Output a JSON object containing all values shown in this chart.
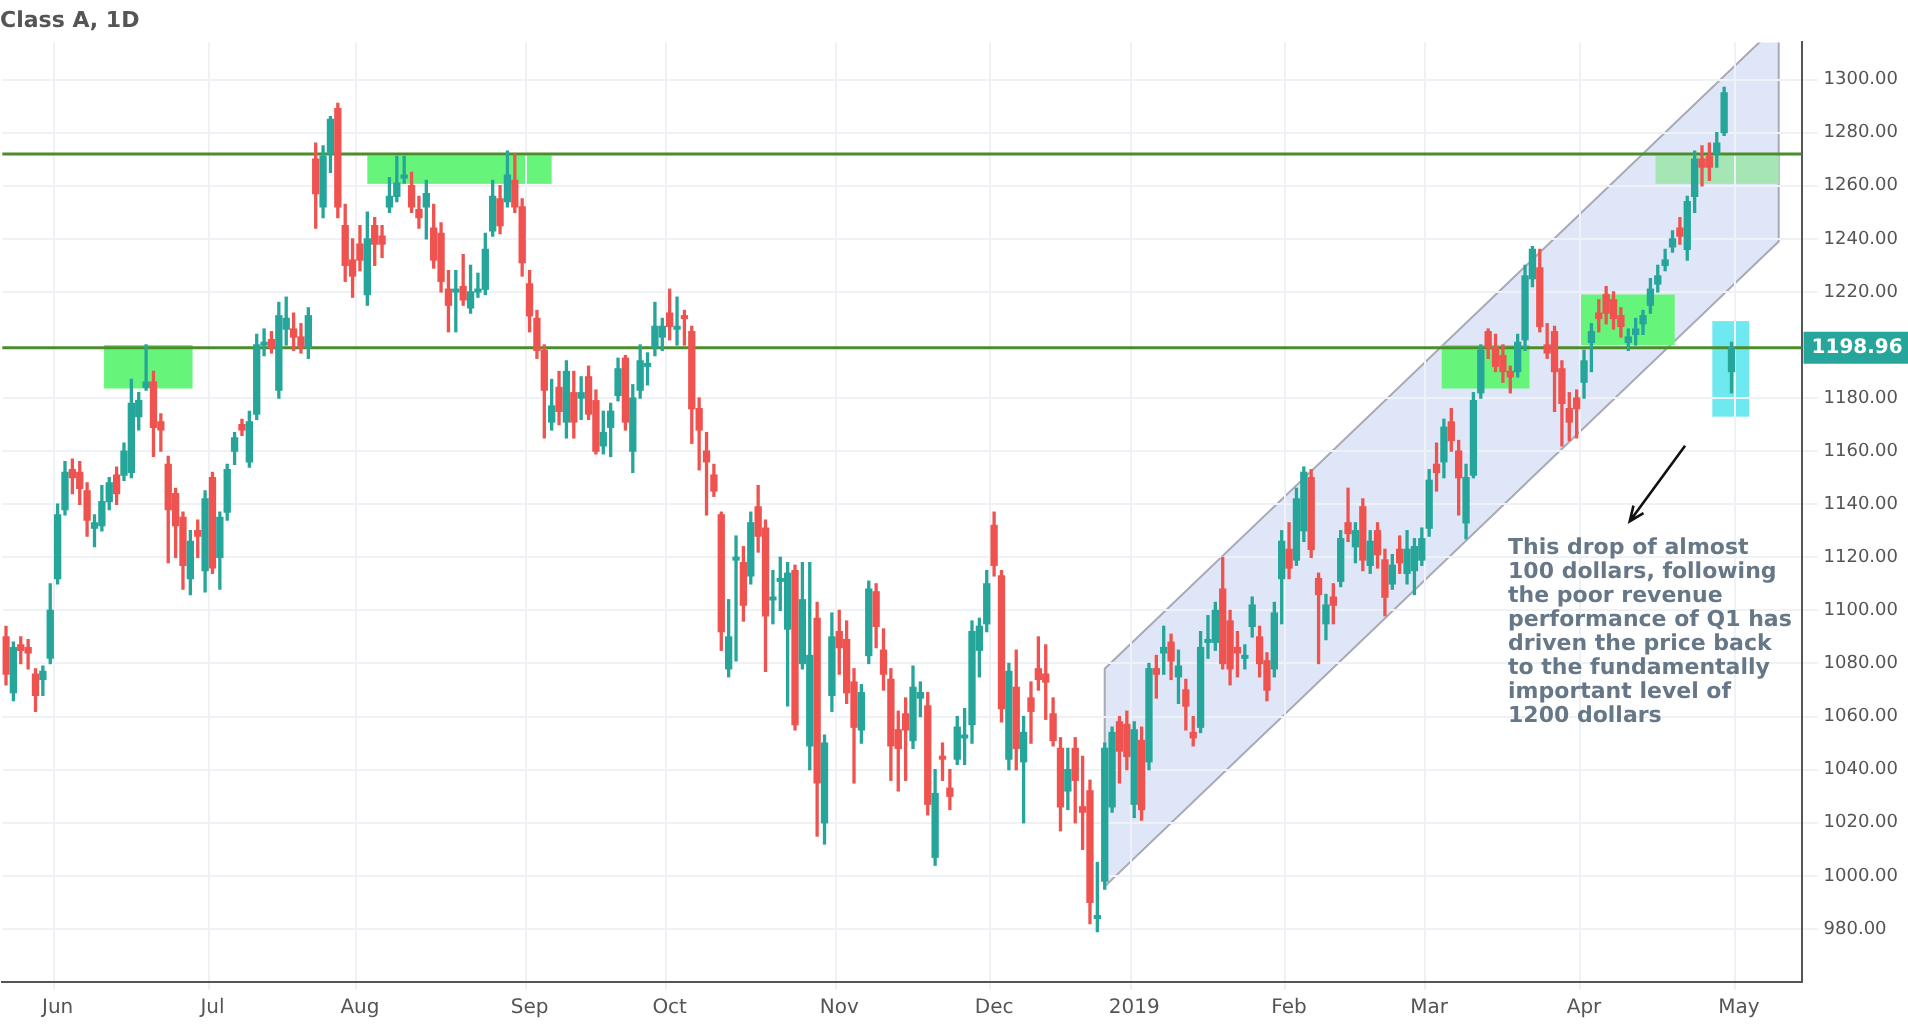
{
  "chart_data": {
    "type": "candlestick",
    "title": "Class A, 1D",
    "categories": [
      null,
      null,
      null,
      null,
      null,
      null,
      null,
      "Jun",
      null,
      null,
      null,
      null,
      null,
      null,
      null,
      null,
      null,
      null,
      null,
      null,
      null,
      null,
      null,
      null,
      null,
      null,
      null,
      null,
      "Jul",
      null,
      null,
      null,
      null,
      null,
      null,
      null,
      null,
      null,
      null,
      null,
      null,
      null,
      null,
      null,
      null,
      null,
      null,
      null,
      "Aug",
      null,
      null,
      null,
      null,
      null,
      null,
      null,
      null,
      null,
      null,
      null,
      null,
      null,
      null,
      null,
      null,
      null,
      null,
      null,
      null,
      null,
      null,
      "Sep",
      null,
      null,
      null,
      null,
      null,
      null,
      null,
      null,
      null,
      null,
      null,
      null,
      null,
      null,
      null,
      null,
      null,
      null,
      "Oct",
      null,
      null,
      null,
      null,
      null,
      null,
      null,
      null,
      null,
      null,
      null,
      null,
      null,
      null,
      null,
      null,
      null,
      null,
      null,
      null,
      null,
      null,
      "Nov",
      null,
      null,
      null,
      null,
      null,
      null,
      null,
      null,
      null,
      null,
      null,
      null,
      null,
      null,
      null,
      null,
      null,
      null,
      null,
      null,
      "Dec",
      null,
      null,
      null,
      null,
      null,
      null,
      null,
      null,
      null,
      null,
      null,
      null,
      null,
      null,
      null,
      null,
      null,
      null,
      "2019",
      null,
      null,
      null,
      null,
      null,
      null,
      null,
      null,
      null,
      null,
      null,
      null,
      null,
      null,
      null,
      null,
      null,
      null,
      null,
      null,
      "Feb",
      null,
      null,
      null,
      null,
      null,
      null,
      null,
      null,
      null,
      null,
      null,
      null,
      null,
      null,
      null,
      null,
      null,
      null,
      "Mar",
      null,
      null,
      null,
      null,
      null,
      null,
      null,
      null,
      null,
      null,
      null,
      null,
      null,
      null,
      null,
      null,
      null,
      null,
      null,
      null,
      "Apr",
      null,
      null,
      null,
      null,
      null,
      null,
      null,
      null,
      null,
      null,
      null,
      null,
      null,
      null,
      null,
      null,
      null,
      null,
      null,
      null,
      "May",
      null,
      null,
      null,
      null,
      null,
      null,
      null,
      null
    ],
    "ohlc": [
      [
        1090,
        1094,
        1072,
        1076
      ],
      [
        1069,
        1088,
        1066,
        1086
      ],
      [
        1087,
        1090,
        1080,
        1085
      ],
      [
        1086,
        1089,
        1078,
        1084
      ],
      [
        1076,
        1078,
        1062,
        1068
      ],
      [
        1074,
        1079,
        1068,
        1077
      ],
      [
        1082,
        1110,
        1080,
        1100
      ],
      [
        1112,
        1140,
        1110,
        1136
      ],
      [
        1138,
        1156,
        1136,
        1152
      ],
      [
        1153,
        1157,
        1144,
        1150
      ],
      [
        1152,
        1156,
        1140,
        1146
      ],
      [
        1145,
        1148,
        1128,
        1134
      ],
      [
        1131,
        1136,
        1124,
        1133
      ],
      [
        1132,
        1147,
        1130,
        1141
      ],
      [
        1141,
        1150,
        1138,
        1148
      ],
      [
        1151,
        1154,
        1140,
        1144
      ],
      [
        1151,
        1163,
        1149,
        1160
      ],
      [
        1152,
        1187,
        1150,
        1178
      ],
      [
        1173,
        1182,
        1168,
        1179
      ],
      [
        1184,
        1200,
        1183,
        1186
      ],
      [
        1186,
        1190,
        1158,
        1169
      ],
      [
        1171,
        1174,
        1160,
        1168
      ],
      [
        1155,
        1158,
        1118,
        1138
      ],
      [
        1144,
        1146,
        1120,
        1132
      ],
      [
        1135,
        1137,
        1108,
        1117
      ],
      [
        1112,
        1130,
        1106,
        1126
      ],
      [
        1130,
        1134,
        1120,
        1128
      ],
      [
        1115,
        1145,
        1107,
        1142
      ],
      [
        1150,
        1152,
        1114,
        1116
      ],
      [
        1120,
        1137,
        1108,
        1135
      ],
      [
        1137,
        1155,
        1134,
        1153
      ],
      [
        1160,
        1167,
        1155,
        1165
      ],
      [
        1170,
        1172,
        1166,
        1168
      ],
      [
        1156,
        1175,
        1154,
        1171
      ],
      [
        1174,
        1204,
        1172,
        1200
      ],
      [
        1200,
        1206,
        1196,
        1201
      ],
      [
        1202,
        1205,
        1197,
        1199
      ],
      [
        1183,
        1216,
        1180,
        1211
      ],
      [
        1206,
        1218,
        1200,
        1210
      ],
      [
        1206,
        1212,
        1198,
        1203
      ],
      [
        1203,
        1208,
        1197,
        1199
      ],
      [
        1199,
        1214,
        1195,
        1211
      ],
      [
        1270,
        1276,
        1244,
        1257
      ],
      [
        1252,
        1275,
        1248,
        1271
      ],
      [
        1272,
        1286,
        1265,
        1285
      ],
      [
        1289,
        1291,
        1248,
        1252
      ],
      [
        1245,
        1253,
        1224,
        1230
      ],
      [
        1232,
        1240,
        1218,
        1226
      ],
      [
        1238,
        1245,
        1228,
        1232
      ],
      [
        1219,
        1250,
        1215,
        1240
      ],
      [
        1245,
        1248,
        1230,
        1238
      ],
      [
        1241,
        1245,
        1233,
        1238
      ],
      [
        1252,
        1263,
        1250,
        1256
      ],
      [
        1256,
        1271,
        1254,
        1261
      ],
      [
        1263,
        1271,
        1261,
        1264
      ],
      [
        1260,
        1265,
        1250,
        1252
      ],
      [
        1251,
        1256,
        1244,
        1248
      ],
      [
        1252,
        1262,
        1240,
        1257
      ],
      [
        1244,
        1253,
        1229,
        1232
      ],
      [
        1242,
        1246,
        1220,
        1224
      ],
      [
        1221,
        1228,
        1205,
        1215
      ],
      [
        1220,
        1228,
        1205,
        1221
      ],
      [
        1222,
        1234,
        1215,
        1217
      ],
      [
        1214,
        1230,
        1212,
        1220
      ],
      [
        1220,
        1227,
        1218,
        1221
      ],
      [
        1221,
        1242,
        1219,
        1236
      ],
      [
        1243,
        1262,
        1241,
        1256
      ],
      [
        1255,
        1260,
        1242,
        1245
      ],
      [
        1254,
        1273,
        1252,
        1264
      ],
      [
        1262,
        1272,
        1250,
        1252
      ],
      [
        1252,
        1255,
        1226,
        1231
      ],
      [
        1223,
        1228,
        1205,
        1211
      ],
      [
        1210,
        1213,
        1195,
        1198
      ],
      [
        1198,
        1200,
        1165,
        1183
      ],
      [
        1171,
        1187,
        1168,
        1177
      ],
      [
        1184,
        1190,
        1170,
        1175
      ],
      [
        1171,
        1194,
        1165,
        1190
      ],
      [
        1182,
        1190,
        1165,
        1171
      ],
      [
        1180,
        1188,
        1172,
        1182
      ],
      [
        1188,
        1192,
        1172,
        1174
      ],
      [
        1179,
        1183,
        1159,
        1160
      ],
      [
        1162,
        1175,
        1159,
        1167
      ],
      [
        1169,
        1178,
        1158,
        1175
      ],
      [
        1181,
        1195,
        1179,
        1191
      ],
      [
        1195,
        1196,
        1168,
        1171
      ],
      [
        1160,
        1185,
        1152,
        1180
      ],
      [
        1183,
        1200,
        1180,
        1194
      ],
      [
        1192,
        1197,
        1185,
        1193
      ],
      [
        1199,
        1216,
        1196,
        1207
      ],
      [
        1203,
        1210,
        1198,
        1207
      ],
      [
        1212,
        1221,
        1202,
        1207
      ],
      [
        1206,
        1218,
        1200,
        1207
      ],
      [
        1211,
        1213,
        1200,
        1210
      ],
      [
        1205,
        1207,
        1163,
        1176
      ],
      [
        1176,
        1180,
        1153,
        1168
      ],
      [
        1160,
        1167,
        1136,
        1156
      ],
      [
        1151,
        1155,
        1143,
        1145
      ],
      [
        1136,
        1137,
        1085,
        1092
      ],
      [
        1078,
        1104,
        1075,
        1090
      ],
      [
        1119,
        1128,
        1081,
        1120
      ],
      [
        1118,
        1124,
        1096,
        1102
      ],
      [
        1113,
        1137,
        1110,
        1133
      ],
      [
        1139,
        1147,
        1122,
        1128
      ],
      [
        1131,
        1134,
        1077,
        1098
      ],
      [
        1104,
        1115,
        1095,
        1105
      ],
      [
        1111,
        1120,
        1100,
        1112
      ],
      [
        1093,
        1118,
        1064,
        1114
      ],
      [
        1115,
        1117,
        1055,
        1057
      ],
      [
        1080,
        1118,
        1078,
        1104
      ],
      [
        1049,
        1118,
        1040,
        1083
      ],
      [
        1097,
        1103,
        1015,
        1035
      ],
      [
        1020,
        1053,
        1012,
        1050
      ],
      [
        1068,
        1099,
        1062,
        1090
      ],
      [
        1092,
        1100,
        1076,
        1086
      ],
      [
        1089,
        1096,
        1065,
        1069
      ],
      [
        1073,
        1078,
        1035,
        1056
      ],
      [
        1055,
        1072,
        1050,
        1069
      ],
      [
        1083,
        1111,
        1080,
        1108
      ],
      [
        1107,
        1110,
        1086,
        1094
      ],
      [
        1085,
        1093,
        1070,
        1076
      ],
      [
        1074,
        1078,
        1036,
        1049
      ],
      [
        1055,
        1062,
        1032,
        1048
      ],
      [
        1061,
        1067,
        1036,
        1055
      ],
      [
        1051,
        1079,
        1048,
        1071
      ],
      [
        1067,
        1073,
        1060,
        1069
      ],
      [
        1064,
        1069,
        1023,
        1027
      ],
      [
        1007,
        1040,
        1004,
        1031
      ],
      [
        1045,
        1050,
        1036,
        1044
      ],
      [
        1033,
        1040,
        1025,
        1030
      ],
      [
        1044,
        1060,
        1042,
        1056
      ],
      [
        1052,
        1063,
        1042,
        1053
      ],
      [
        1057,
        1096,
        1050,
        1092
      ],
      [
        1085,
        1097,
        1075,
        1094
      ],
      [
        1095,
        1115,
        1092,
        1110
      ],
      [
        1132,
        1137,
        1113,
        1117
      ],
      [
        1113,
        1115,
        1058,
        1063
      ],
      [
        1044,
        1080,
        1040,
        1077
      ],
      [
        1071,
        1085,
        1040,
        1048
      ],
      [
        1043,
        1060,
        1020,
        1054
      ],
      [
        1067,
        1073,
        1050,
        1062
      ],
      [
        1078,
        1090,
        1070,
        1074
      ],
      [
        1076,
        1087,
        1059,
        1073
      ],
      [
        1061,
        1067,
        1049,
        1051
      ],
      [
        1048,
        1052,
        1017,
        1026
      ],
      [
        1032,
        1048,
        1025,
        1040
      ],
      [
        1048,
        1052,
        1020,
        1036
      ],
      [
        1026,
        1045,
        1010,
        1024
      ],
      [
        1032,
        1036,
        982,
        990
      ],
      [
        984,
        1005,
        979,
        985
      ],
      [
        998,
        1050,
        995,
        1048
      ],
      [
        1026,
        1056,
        1024,
        1054
      ],
      [
        1058,
        1060,
        1035,
        1047
      ],
      [
        1057,
        1062,
        1040,
        1045
      ],
      [
        1027,
        1058,
        1022,
        1055
      ],
      [
        1051,
        1056,
        1021,
        1025
      ],
      [
        1043,
        1080,
        1040,
        1078
      ],
      [
        1078,
        1083,
        1067,
        1076
      ],
      [
        1084,
        1094,
        1076,
        1086
      ],
      [
        1088,
        1091,
        1074,
        1081
      ],
      [
        1075,
        1085,
        1065,
        1079
      ],
      [
        1070,
        1074,
        1055,
        1064
      ],
      [
        1054,
        1060,
        1049,
        1052
      ],
      [
        1056,
        1092,
        1054,
        1086
      ],
      [
        1088,
        1098,
        1082,
        1089
      ],
      [
        1088,
        1103,
        1085,
        1100
      ],
      [
        1108,
        1120,
        1078,
        1080
      ],
      [
        1096,
        1100,
        1072,
        1078
      ],
      [
        1086,
        1092,
        1075,
        1084
      ],
      [
        1082,
        1087,
        1078,
        1083
      ],
      [
        1094,
        1105,
        1090,
        1102
      ],
      [
        1090,
        1094,
        1075,
        1080
      ],
      [
        1081,
        1084,
        1066,
        1070
      ],
      [
        1078,
        1103,
        1075,
        1099
      ],
      [
        1112,
        1130,
        1095,
        1126
      ],
      [
        1123,
        1133,
        1112,
        1116
      ],
      [
        1119,
        1146,
        1117,
        1142
      ],
      [
        1130,
        1154,
        1126,
        1152
      ],
      [
        1150,
        1153,
        1120,
        1123
      ],
      [
        1112,
        1114,
        1080,
        1106
      ],
      [
        1095,
        1106,
        1089,
        1102
      ],
      [
        1105,
        1110,
        1095,
        1102
      ],
      [
        1111,
        1130,
        1109,
        1127
      ],
      [
        1133,
        1146,
        1126,
        1129
      ],
      [
        1124,
        1133,
        1118,
        1130
      ],
      [
        1139,
        1142,
        1115,
        1119
      ],
      [
        1117,
        1130,
        1114,
        1126
      ],
      [
        1130,
        1133,
        1116,
        1121
      ],
      [
        1119,
        1123,
        1098,
        1105
      ],
      [
        1110,
        1121,
        1108,
        1117
      ],
      [
        1123,
        1128,
        1114,
        1118
      ],
      [
        1114,
        1130,
        1110,
        1123
      ],
      [
        1115,
        1127,
        1106,
        1124
      ],
      [
        1119,
        1131,
        1117,
        1127
      ],
      [
        1131,
        1153,
        1128,
        1149
      ],
      [
        1155,
        1163,
        1145,
        1152
      ],
      [
        1156,
        1172,
        1150,
        1169
      ],
      [
        1171,
        1176,
        1160,
        1164
      ],
      [
        1160,
        1164,
        1136,
        1150
      ],
      [
        1133,
        1155,
        1127,
        1150
      ],
      [
        1151,
        1182,
        1150,
        1179
      ],
      [
        1182,
        1200,
        1180,
        1198
      ],
      [
        1205,
        1206,
        1195,
        1199
      ],
      [
        1199,
        1204,
        1190,
        1192
      ],
      [
        1196,
        1200,
        1186,
        1190
      ],
      [
        1190,
        1192,
        1182,
        1188
      ],
      [
        1190,
        1204,
        1188,
        1201
      ],
      [
        1202,
        1230,
        1198,
        1226
      ],
      [
        1225,
        1237,
        1222,
        1236
      ],
      [
        1229,
        1236,
        1205,
        1207
      ],
      [
        1200,
        1208,
        1195,
        1197
      ],
      [
        1205,
        1207,
        1175,
        1190
      ],
      [
        1191,
        1194,
        1162,
        1178
      ],
      [
        1176,
        1182,
        1164,
        1171
      ],
      [
        1180,
        1183,
        1165,
        1176
      ],
      [
        1186,
        1198,
        1180,
        1194
      ],
      [
        1201,
        1208,
        1190,
        1205
      ],
      [
        1212,
        1217,
        1205,
        1210
      ],
      [
        1219,
        1222,
        1208,
        1212
      ],
      [
        1217,
        1220,
        1206,
        1210
      ],
      [
        1211,
        1214,
        1203,
        1207
      ],
      [
        1201,
        1206,
        1198,
        1203
      ],
      [
        1204,
        1210,
        1200,
        1206
      ],
      [
        1208,
        1213,
        1204,
        1211
      ],
      [
        1215,
        1225,
        1212,
        1221
      ],
      [
        1223,
        1230,
        1220,
        1226
      ],
      [
        1230,
        1236,
        1228,
        1232
      ],
      [
        1237,
        1243,
        1235,
        1240
      ],
      [
        1244,
        1248,
        1238,
        1241
      ],
      [
        1236,
        1256,
        1232,
        1254
      ],
      [
        1256,
        1273,
        1250,
        1270
      ],
      [
        1270,
        1275,
        1260,
        1267
      ],
      [
        1271,
        1276,
        1262,
        1267
      ],
      [
        1272,
        1280,
        1267,
        1276
      ],
      [
        1280,
        1297,
        1279,
        1295
      ],
      [
        1190,
        1201,
        1182,
        1198.96
      ],
      null,
      null,
      null,
      null,
      null,
      null,
      null,
      null,
      null
    ],
    "ylim": [
      960,
      1314
    ],
    "yticks": [
      {
        "value": 980,
        "label": "980.00"
      },
      {
        "value": 1000,
        "label": "1000.00"
      },
      {
        "value": 1020,
        "label": "1020.00"
      },
      {
        "value": 1040,
        "label": "1040.00"
      },
      {
        "value": 1060,
        "label": "1060.00"
      },
      {
        "value": 1080,
        "label": "1080.00"
      },
      {
        "value": 1100,
        "label": "1100.00"
      },
      {
        "value": 1120,
        "label": "1120.00"
      },
      {
        "value": 1140,
        "label": "1140.00"
      },
      {
        "value": 1160,
        "label": "1160.00"
      },
      {
        "value": 1180,
        "label": "1180.00"
      },
      {
        "value": 1220,
        "label": "1220.00"
      },
      {
        "value": 1240,
        "label": "1240.00"
      },
      {
        "value": 1260,
        "label": "1260.00"
      },
      {
        "value": 1280,
        "label": "1280.00"
      },
      {
        "value": 1300,
        "label": "1300.00"
      }
    ],
    "grid": true,
    "ref_lines": [
      {
        "axis": "y",
        "value": 1198.96,
        "label": "1198.96",
        "color": "#4c8c2b"
      },
      {
        "axis": "y",
        "value": 1272,
        "color": "#4c8c2b"
      }
    ],
    "annotations": [
      "This drop of almost 100 dollars, following the poor revenue performance of Q1 has driven the price back to the fundamentally important level of 1200 dollars"
    ]
  }
}
